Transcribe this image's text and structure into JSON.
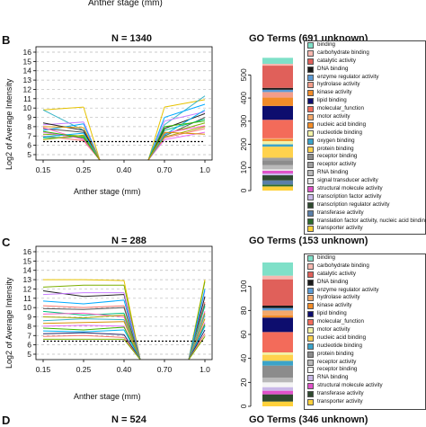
{
  "top_caption": "Anther stage (mm)",
  "panels": [
    {
      "letter": "B",
      "title": "N = 1340",
      "go_title": "GO Terms (691 unknown)",
      "ylabel": "Log2 of Average Intensity",
      "xlabel": "Anther stage (mm)",
      "legend": [
        "binding",
        "carbohydrate binding",
        "catalytic activity",
        "DNA binding",
        "enzyme regulator activity",
        "hydrolase activity",
        "kinase activity",
        "lipid binding",
        "molecular_function",
        "motor activity",
        "nucleic acid binding",
        "nucleotide binding",
        "oxygen binding",
        "protein binding",
        "receptor binding",
        "receptor activity",
        "RNA binding",
        "signal transducer activity",
        "structural molecule activity",
        "transcription factor activity",
        "transcription regulator activity",
        "transferase activity",
        "translation factor activity, nucleic acid binding",
        "transporter activity"
      ]
    },
    {
      "letter": "C",
      "title": "N = 288",
      "go_title": "GO Terms (153 unknown)",
      "ylabel": "Log2 of Average Intensity",
      "xlabel": "Anther stage (mm)",
      "legend": [
        "binding",
        "carbohydrate binding",
        "catalytic activity",
        "DNA binding",
        "enzyme regulator activity",
        "hydrolase activity",
        "kinase activity",
        "lipid binding",
        "molecular_function",
        "motor activity",
        "nucleic acid binding",
        "nucleotide binding",
        "protein binding",
        "receptor activity",
        "receptor binding",
        "RNA binding",
        "structural molecule activity",
        "transferase activity",
        "transporter activity"
      ]
    },
    {
      "letter": "D",
      "title": "N = 524",
      "go_title": "GO Terms (346 unknown)"
    }
  ],
  "chart_data": [
    {
      "type": "line",
      "panel": "B",
      "x": [
        0.15,
        0.25,
        0.4,
        0.7,
        1.0
      ],
      "xticks": [
        "0.15",
        "0.25",
        "0.40",
        "0.70",
        "1.0"
      ],
      "yticks": [
        5,
        6,
        7,
        8,
        9,
        10,
        11,
        12,
        13,
        14,
        15,
        16
      ],
      "ylim": [
        5,
        16
      ],
      "threshold": 6.4,
      "grid": true,
      "series": [
        {
          "color": "#e6c200",
          "values": [
            9.8,
            10.1,
            null,
            10.1,
            10.9
          ]
        },
        {
          "color": "#3cb6c8",
          "values": [
            9.8,
            7.6,
            null,
            8.2,
            11.3
          ]
        },
        {
          "color": "#c77cff",
          "values": [
            8.2,
            8.5,
            null,
            8.6,
            9.6
          ]
        },
        {
          "color": "#00a9ff",
          "values": [
            7.6,
            8.3,
            null,
            9.0,
            10.4
          ]
        },
        {
          "color": "#555555",
          "values": [
            7.8,
            7.4,
            null,
            7.0,
            9.0
          ]
        },
        {
          "color": "#7cae00",
          "values": [
            7.2,
            7.0,
            null,
            7.2,
            8.4
          ]
        },
        {
          "color": "#f8766d",
          "values": [
            7.0,
            6.5,
            null,
            6.8,
            7.8
          ]
        },
        {
          "color": "#00bf7d",
          "values": [
            6.8,
            6.9,
            null,
            7.6,
            8.8
          ]
        },
        {
          "color": "#e76bf3",
          "values": [
            7.4,
            6.7,
            null,
            6.6,
            7.4
          ]
        },
        {
          "color": "#a3a500",
          "values": [
            6.6,
            7.1,
            null,
            6.9,
            8.0
          ]
        },
        {
          "color": "#222222",
          "values": [
            8.4,
            7.6,
            null,
            7.8,
            9.4
          ]
        },
        {
          "color": "#ff61c3",
          "values": [
            7.9,
            6.6,
            null,
            7.3,
            8.1
          ]
        },
        {
          "color": "#00b0f6",
          "values": [
            6.9,
            7.3,
            null,
            7.1,
            9.8
          ]
        },
        {
          "color": "#39b600",
          "values": [
            7.5,
            6.8,
            null,
            8.0,
            8.6
          ]
        },
        {
          "color": "#d89000",
          "values": [
            8.0,
            7.9,
            null,
            7.4,
            7.2
          ]
        }
      ]
    },
    {
      "type": "bar",
      "panel": "B",
      "stacked": true,
      "yticks": [
        0,
        100,
        200,
        300,
        400,
        500
      ],
      "ylim": [
        0,
        649
      ],
      "segments": [
        {
          "label": "transporter activity",
          "color": "#ffd13b",
          "value": 18
        },
        {
          "label": "translation factor activity, nucleic acid binding",
          "color": "#2d6a2d",
          "value": 8
        },
        {
          "label": "transferase activity",
          "color": "#5b7fa8",
          "value": 18
        },
        {
          "label": "transcription regulator activity",
          "color": "#2f4a2f",
          "value": 22
        },
        {
          "label": "transcription factor activity",
          "color": "#c9b8e8",
          "value": 8
        },
        {
          "label": "structural molecule activity",
          "color": "#e052c9",
          "value": 12
        },
        {
          "label": "signal transducer activity",
          "color": "#e8e8e8",
          "value": 6
        },
        {
          "label": "RNA binding",
          "color": "#b9b9b9",
          "value": 18
        },
        {
          "label": "receptor binding",
          "color": "#8c8c8c",
          "value": 20
        },
        {
          "label": "receptor activity",
          "color": "#a0a0a0",
          "value": 12
        },
        {
          "label": "protein binding",
          "color": "#ffd24d",
          "value": 48
        },
        {
          "label": "oxygen binding",
          "color": "#3ba3c9",
          "value": 10
        },
        {
          "label": "nucleotide binding",
          "color": "#f2f2a8",
          "value": 14
        },
        {
          "label": "nucleic acid binding",
          "color": "#f28c28",
          "value": 8
        },
        {
          "label": "motor activity",
          "color": "#f4a86a",
          "value": 4
        },
        {
          "label": "molecular_function",
          "color": "#f36b5a",
          "value": 80
        },
        {
          "label": "lipid binding",
          "color": "#0d0d6e",
          "value": 60
        },
        {
          "label": "kinase activity",
          "color": "#f28c28",
          "value": 36
        },
        {
          "label": "hydrolase activity",
          "color": "#f29d8a",
          "value": 24
        },
        {
          "label": "enzyme regulator activity",
          "color": "#5b9bd5",
          "value": 10
        },
        {
          "label": "DNA binding",
          "color": "#1a1a1a",
          "value": 8
        },
        {
          "label": "catalytic activity",
          "color": "#e0605a",
          "value": 96
        },
        {
          "label": "carbohydrate binding",
          "color": "#f6b8b0",
          "value": 8
        },
        {
          "label": "binding",
          "color": "#7fe0c8",
          "value": 26
        }
      ]
    },
    {
      "type": "line",
      "panel": "C",
      "x": [
        0.15,
        0.25,
        0.4,
        0.7,
        1.0
      ],
      "xticks": [
        "0.15",
        "0.25",
        "0.40",
        "0.70",
        "1.0"
      ],
      "yticks": [
        5,
        6,
        7,
        8,
        9,
        10,
        11,
        12,
        13,
        14,
        15,
        16
      ],
      "ylim": [
        5,
        16
      ],
      "threshold": 6.4,
      "grid": true,
      "series": [
        {
          "color": "#e6c200",
          "values": [
            13.0,
            13.0,
            12.9,
            null,
            13.0
          ]
        },
        {
          "color": "#7cae00",
          "values": [
            12.2,
            12.4,
            12.4,
            null,
            12.8
          ]
        },
        {
          "color": "#222222",
          "values": [
            11.8,
            11.2,
            11.4,
            null,
            11.2
          ]
        },
        {
          "color": "#c77cff",
          "values": [
            11.4,
            11.6,
            11.6,
            null,
            11.8
          ]
        },
        {
          "color": "#00a9ff",
          "values": [
            10.7,
            10.4,
            10.8,
            null,
            12.0
          ]
        },
        {
          "color": "#f8766d",
          "values": [
            10.2,
            10.0,
            10.2,
            null,
            10.6
          ]
        },
        {
          "color": "#555555",
          "values": [
            9.9,
            9.8,
            10.0,
            null,
            10.4
          ]
        },
        {
          "color": "#00bf7d",
          "values": [
            9.6,
            9.2,
            9.4,
            null,
            10.2
          ]
        },
        {
          "color": "#ff61c3",
          "values": [
            9.3,
            9.4,
            9.0,
            null,
            9.6
          ]
        },
        {
          "color": "#a3a500",
          "values": [
            9.0,
            8.9,
            9.2,
            null,
            9.4
          ]
        },
        {
          "color": "#3cb6c8",
          "values": [
            8.6,
            8.8,
            8.7,
            null,
            9.2
          ]
        },
        {
          "color": "#d89000",
          "values": [
            8.3,
            8.4,
            8.5,
            null,
            8.8
          ]
        },
        {
          "color": "#e76bf3",
          "values": [
            8.0,
            8.1,
            8.0,
            null,
            8.4
          ]
        },
        {
          "color": "#39b600",
          "values": [
            7.8,
            7.6,
            7.9,
            null,
            8.2
          ]
        },
        {
          "color": "#00b0f6",
          "values": [
            7.5,
            7.4,
            7.6,
            null,
            8.0
          ]
        },
        {
          "color": "#222266",
          "values": [
            7.2,
            7.3,
            7.1,
            null,
            7.6
          ]
        },
        {
          "color": "#f8766d",
          "values": [
            6.9,
            7.0,
            6.8,
            null,
            7.2
          ]
        },
        {
          "color": "#7cae00",
          "values": [
            6.6,
            6.6,
            6.6,
            null,
            6.9
          ]
        }
      ]
    },
    {
      "type": "bar",
      "panel": "C",
      "stacked": true,
      "yticks": [
        0,
        20,
        40,
        60,
        80,
        100
      ],
      "ylim": [
        0,
        135
      ],
      "segments": [
        {
          "label": "transporter activity",
          "color": "#ffd13b",
          "value": 4
        },
        {
          "label": "transferase activity",
          "color": "#2f4a2f",
          "value": 6
        },
        {
          "label": "structural molecule activity",
          "color": "#e052c9",
          "value": 3
        },
        {
          "label": "RNA binding",
          "color": "#c9b8e8",
          "value": 3
        },
        {
          "label": "receptor binding",
          "color": "#f5f5f5",
          "value": 4
        },
        {
          "label": "receptor activity",
          "color": "#b9b9b9",
          "value": 4
        },
        {
          "label": "protein binding",
          "color": "#8c8c8c",
          "value": 10
        },
        {
          "label": "nucleotide binding",
          "color": "#3ba3c9",
          "value": 4
        },
        {
          "label": "nucleic acid binding",
          "color": "#ffd24d",
          "value": 5
        },
        {
          "label": "motor activity",
          "color": "#f2f2a8",
          "value": 2
        },
        {
          "label": "molecular_function",
          "color": "#f36b5a",
          "value": 17
        },
        {
          "label": "lipid binding",
          "color": "#0d0d6e",
          "value": 12
        },
        {
          "label": "kinase activity",
          "color": "#f28c28",
          "value": 2
        },
        {
          "label": "hydrolase activity",
          "color": "#f4a86a",
          "value": 4
        },
        {
          "label": "enzyme regulator activity",
          "color": "#5b9bd5",
          "value": 2
        },
        {
          "label": "DNA binding",
          "color": "#1a1a1a",
          "value": 2
        },
        {
          "label": "catalytic activity",
          "color": "#e0605a",
          "value": 22
        },
        {
          "label": "carbohydrate binding",
          "color": "#f6b8b0",
          "value": 3
        },
        {
          "label": "binding",
          "color": "#7fe0c8",
          "value": 11
        }
      ]
    }
  ]
}
